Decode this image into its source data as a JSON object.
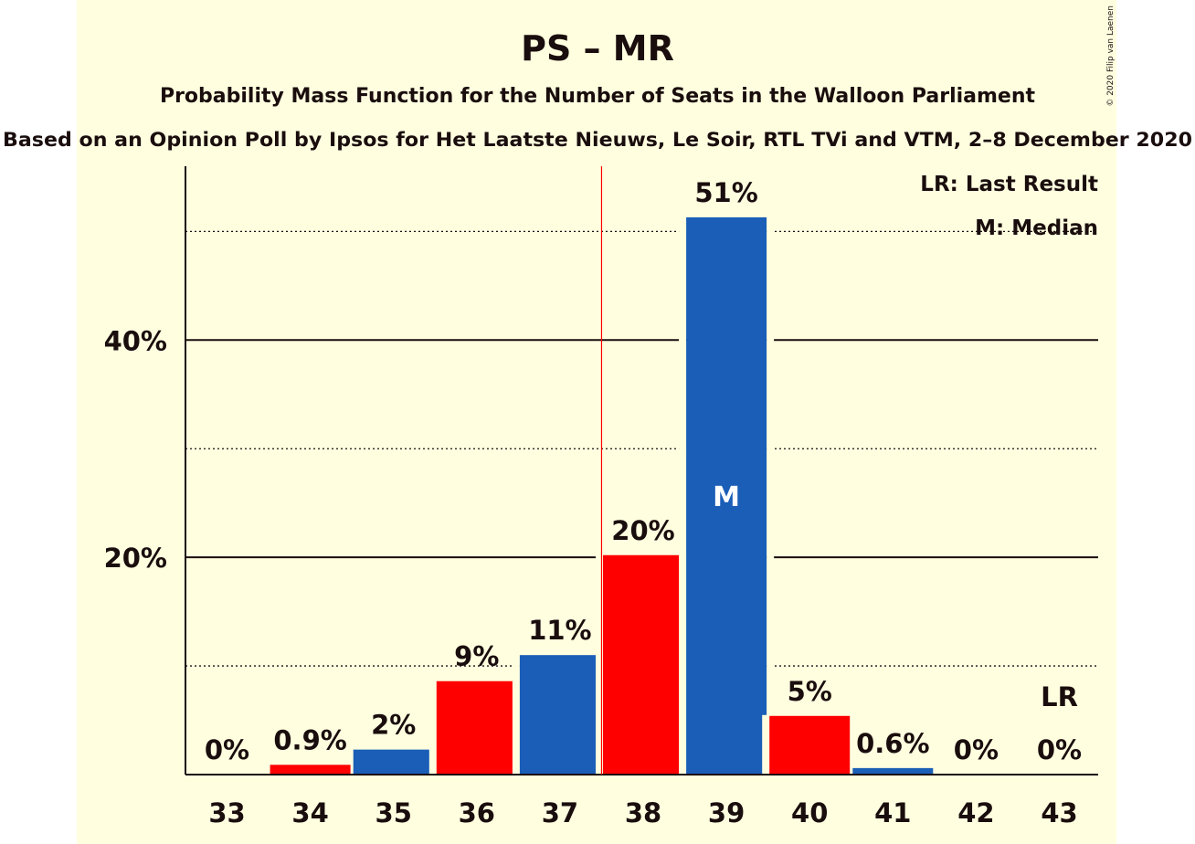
{
  "chart_data": {
    "type": "bar",
    "title": "PS – MR",
    "subtitle": "Probability Mass Function for the Number of Seats in the Walloon Parliament",
    "source": "Based on an Opinion Poll by Ipsos for Het Laatste Nieuws, Le Soir, RTL TVi and VTM, 2–8 December 2020",
    "copyright": "© 2020 Filip van Laenen",
    "categories": [
      "33",
      "34",
      "35",
      "36",
      "37",
      "38",
      "39",
      "40",
      "41",
      "42",
      "43"
    ],
    "values": [
      0,
      0.9,
      2.3,
      8.6,
      11,
      20.2,
      51.3,
      5.4,
      0.6,
      0,
      0
    ],
    "labels": [
      "0%",
      "0.9%",
      "2%",
      "9%",
      "11%",
      "20%",
      "51%",
      "5%",
      "0.6%",
      "0%",
      "0%"
    ],
    "bar_colors": [
      "#ff0000",
      "#ff0000",
      "#1a5eb7",
      "#ff0000",
      "#1a5eb7",
      "#ff0000",
      "#1a5eb7",
      "#ff0000",
      "#1a5eb7",
      "#ff0000",
      "#1a5eb7"
    ],
    "ylim": [
      0,
      56
    ],
    "yticks": [
      {
        "value": 20,
        "label": "20%"
      },
      {
        "value": 40,
        "label": "40%"
      }
    ],
    "minor_gridlines": [
      10,
      30,
      50
    ],
    "median_seat": "39",
    "median_marker": "M",
    "last_result_seat": "43",
    "last_result_marker": "LR",
    "majority_after_seat": "37",
    "legend": {
      "position": "top-right",
      "entries": [
        "LR: Last Result",
        "M: Median"
      ]
    },
    "colors": {
      "background": "#ffffe0",
      "text": "#1a0d0d",
      "majority_line": "#ff0000"
    }
  }
}
